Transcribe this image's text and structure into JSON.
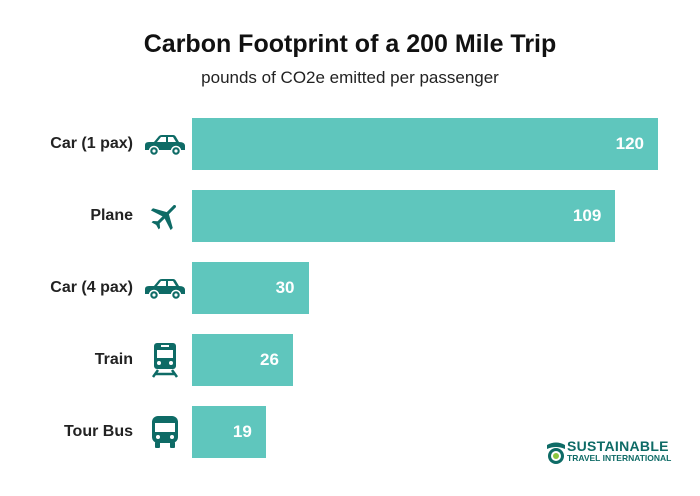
{
  "chart_data": {
    "type": "bar",
    "orientation": "horizontal",
    "title": "Carbon Footprint of a 200 Mile Trip",
    "subtitle": "pounds of CO2e emitted per passenger",
    "categories": [
      "Car (1 pax)",
      "Plane",
      "Car (4 pax)",
      "Train",
      "Tour Bus"
    ],
    "icons": [
      "car-icon",
      "plane-icon",
      "car-icon",
      "train-icon",
      "bus-icon"
    ],
    "values": [
      120,
      109,
      30,
      26,
      19
    ],
    "xlim": [
      0,
      120
    ],
    "grid": false,
    "data_labels": true
  },
  "colors": {
    "bar": "#5fc6bd",
    "icon": "#0e6b66",
    "label": "#ffffff"
  },
  "logo": {
    "line1": "SUSTAINABLE",
    "line2": "TRAVEL INTERNATIONAL"
  }
}
